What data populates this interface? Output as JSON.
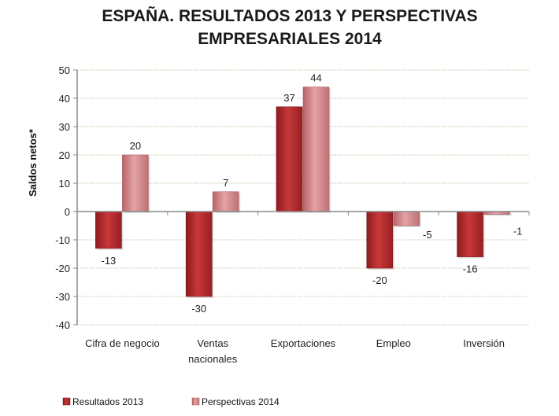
{
  "chart_data": {
    "type": "bar",
    "title_lines": [
      "ESPAÑA. RESULTADOS 2013 Y PERSPECTIVAS",
      "EMPRESARIALES 2014"
    ],
    "xlabel": "",
    "ylabel": "Saldos netos*",
    "ylim": [
      -40,
      50
    ],
    "yticks": [
      50,
      40,
      30,
      20,
      10,
      0,
      -10,
      -20,
      -30,
      -40
    ],
    "grid": true,
    "legend_position": "bottom-left",
    "categories": [
      [
        "Cifra de negocio"
      ],
      [
        "Ventas",
        "nacionales"
      ],
      [
        "Exportaciones"
      ],
      [
        "Empleo"
      ],
      [
        "Inversión"
      ]
    ],
    "series": [
      {
        "name": "Resultados 2013",
        "color": "#b5272a",
        "values": [
          -13,
          -30,
          37,
          -20,
          -16
        ]
      },
      {
        "name": "Perspectivas 2014",
        "color": "#d9868a",
        "values": [
          20,
          7,
          44,
          -5,
          -1
        ]
      }
    ]
  }
}
